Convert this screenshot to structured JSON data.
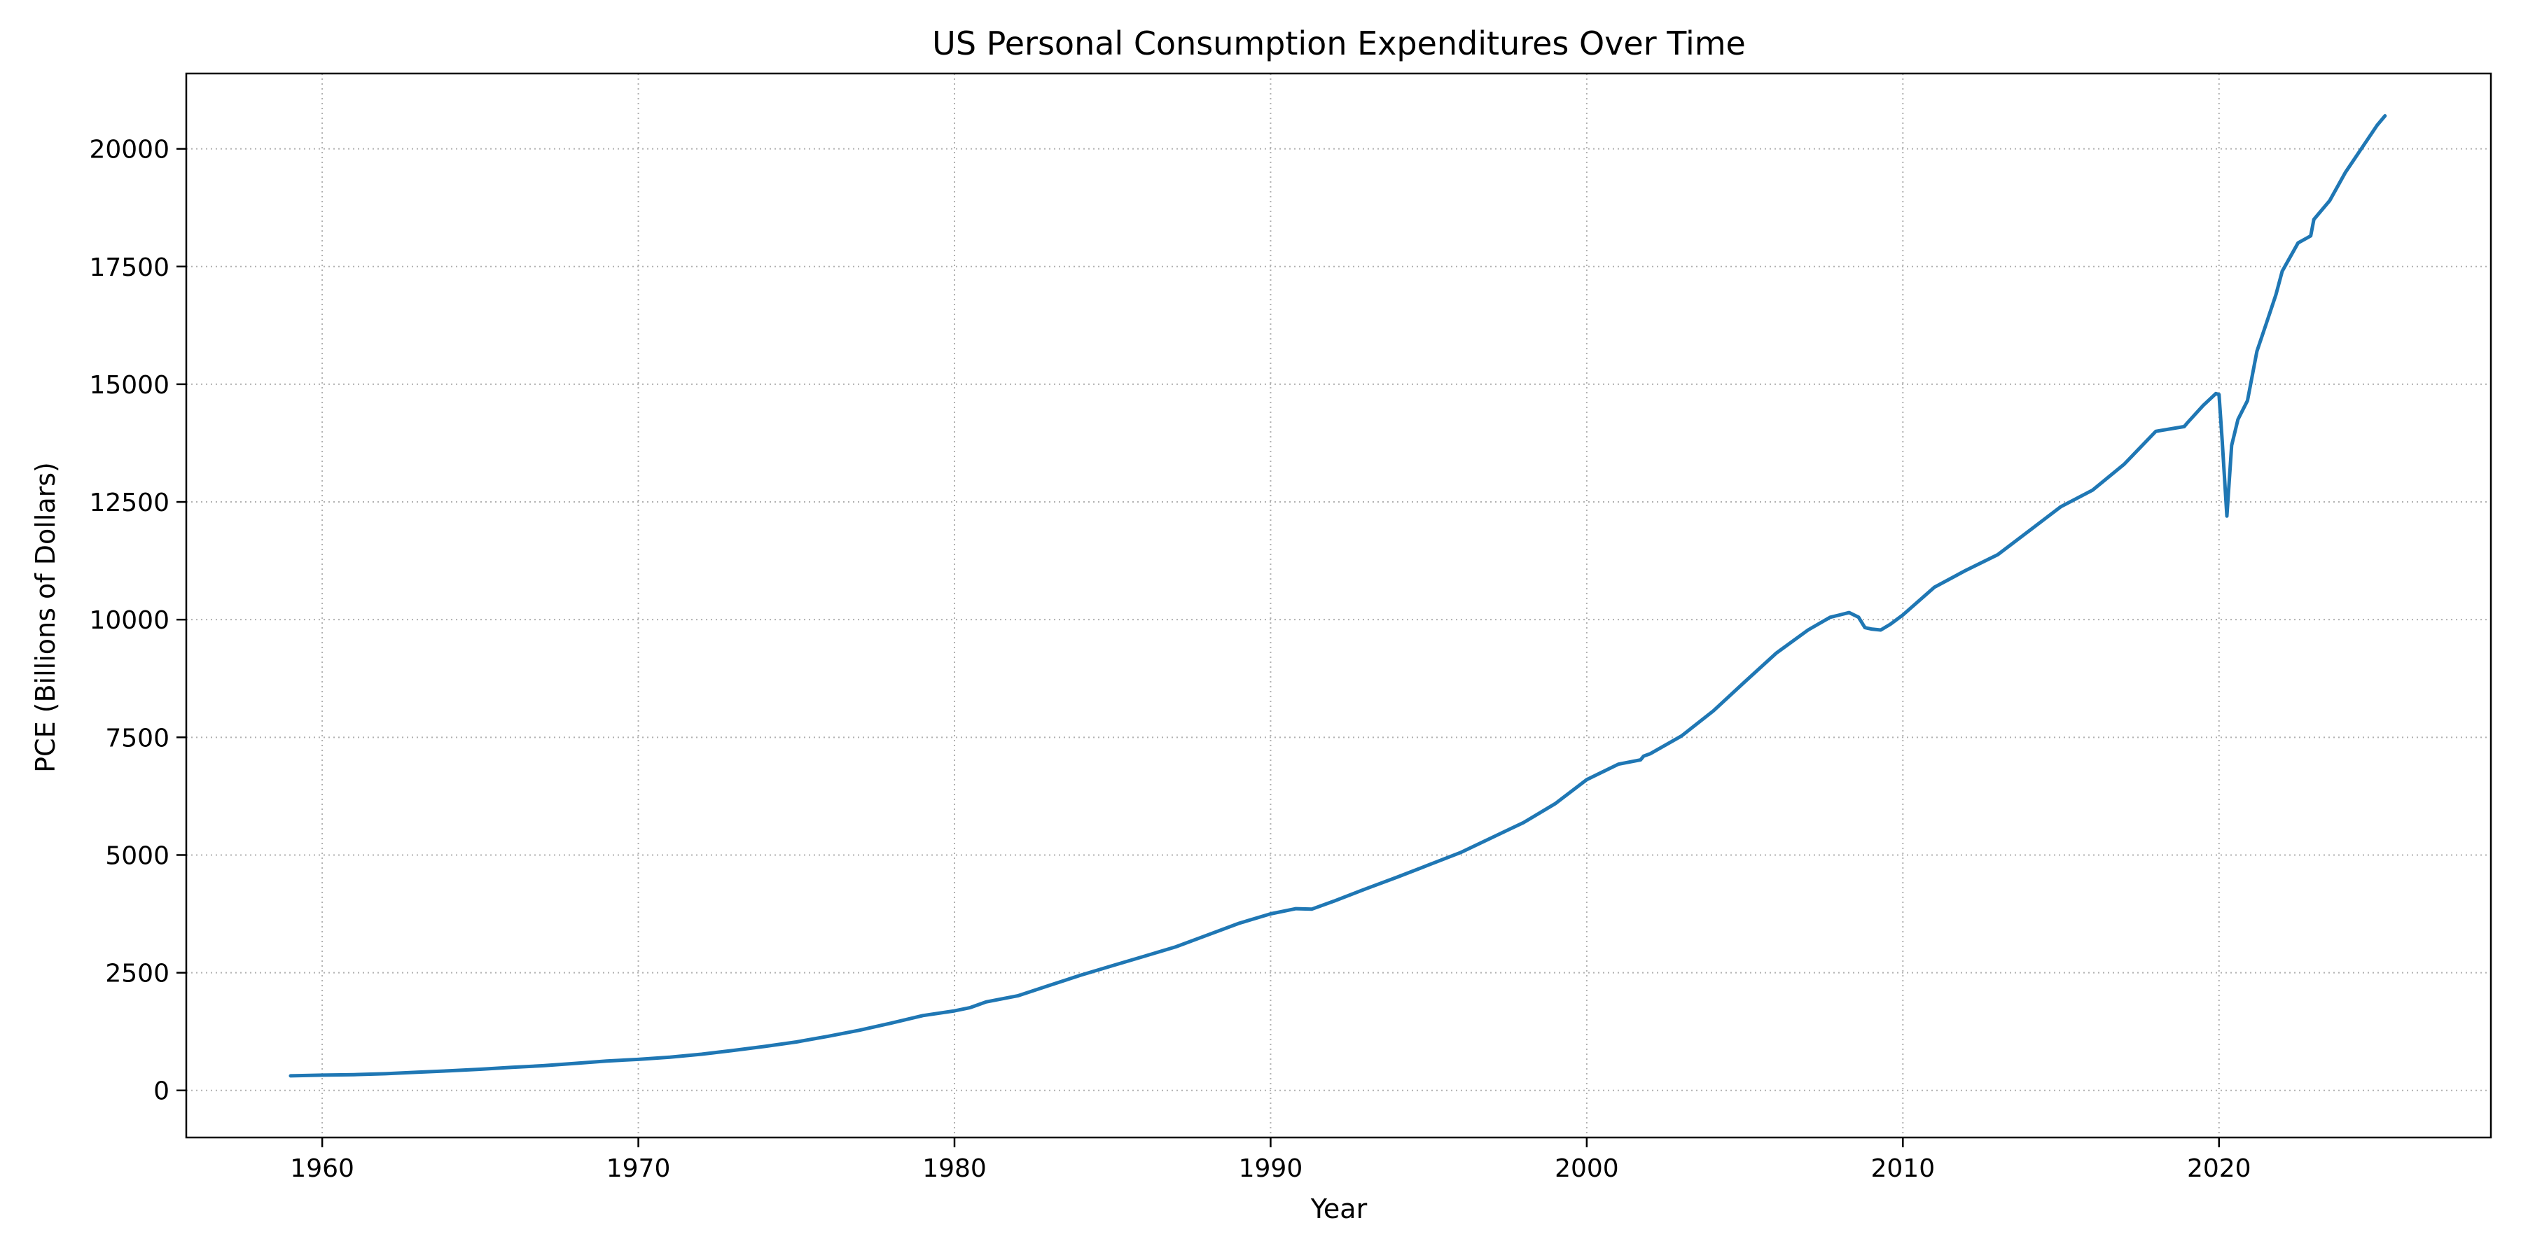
{
  "chart_data": {
    "type": "line",
    "title": "US Personal Consumption Expenditures Over Time",
    "xlabel": "Year",
    "ylabel": "PCE (Billions of Dollars)",
    "xlim": [
      1955.7,
      2028.6
    ],
    "ylim": [
      -1000,
      21600
    ],
    "xticks": [
      1960,
      1970,
      1980,
      1990,
      2000,
      2010,
      2020
    ],
    "yticks": [
      0,
      2500,
      5000,
      7500,
      10000,
      12500,
      15000,
      17500,
      20000
    ],
    "grid": true,
    "grid_style": "dotted",
    "line_color": "#1f77b4",
    "series": [
      {
        "x": [
          1959.0,
          1960.0,
          1961.0,
          1962.0,
          1963.0,
          1964.0,
          1965.0,
          1966.0,
          1967.0,
          1968.0,
          1969.0,
          1970.0,
          1971.0,
          1972.0,
          1973.0,
          1974.0,
          1975.0,
          1976.0,
          1977.0,
          1978.0,
          1979.0,
          1980.0,
          1980.5,
          1981.0,
          1982.0,
          1983.0,
          1984.0,
          1985.0,
          1986.0,
          1987.0,
          1988.0,
          1989.0,
          1990.0,
          1990.8,
          1991.3,
          1992.0,
          1993.0,
          1994.0,
          1995.0,
          1996.0,
          1997.0,
          1998.0,
          1999.0,
          2000.0,
          2001.0,
          2001.7,
          2001.8,
          2002.0,
          2003.0,
          2004.0,
          2005.0,
          2006.0,
          2007.0,
          2007.7,
          2008.0,
          2008.3,
          2008.6,
          2008.8,
          2009.0,
          2009.3,
          2009.6,
          2010.0,
          2011.0,
          2012.0,
          2013.0,
          2014.0,
          2015.0,
          2016.0,
          2017.0,
          2018.0,
          2018.9,
          2019.0,
          2019.5,
          2019.9,
          2020.0,
          2020.1,
          2020.25,
          2020.4,
          2020.6,
          2020.9,
          2021.0,
          2021.2,
          2021.5,
          2021.8,
          2022.0,
          2022.5,
          2022.9,
          2023.0,
          2023.5,
          2024.0,
          2024.5,
          2025.0,
          2025.25
        ],
        "y": [
          310,
          325,
          335,
          355,
          385,
          415,
          450,
          490,
          525,
          575,
          625,
          660,
          705,
          770,
          850,
          935,
          1030,
          1150,
          1280,
          1430,
          1590,
          1690,
          1760,
          1880,
          2010,
          2230,
          2450,
          2650,
          2850,
          3050,
          3300,
          3550,
          3750,
          3860,
          3850,
          4020,
          4280,
          4530,
          4790,
          5050,
          5370,
          5690,
          6090,
          6600,
          6930,
          7020,
          7100,
          7150,
          7530,
          8060,
          8680,
          9290,
          9780,
          10050,
          10100,
          10150,
          10050,
          9830,
          9800,
          9780,
          9900,
          10100,
          10690,
          11050,
          11380,
          11890,
          12400,
          12750,
          13300,
          14000,
          14100,
          14180,
          14550,
          14800,
          14780,
          13800,
          12200,
          13700,
          14250,
          14650,
          15000,
          15700,
          16300,
          16900,
          17400,
          18000,
          18150,
          18500,
          18900,
          19500,
          20000,
          20500,
          20700
        ]
      }
    ]
  }
}
